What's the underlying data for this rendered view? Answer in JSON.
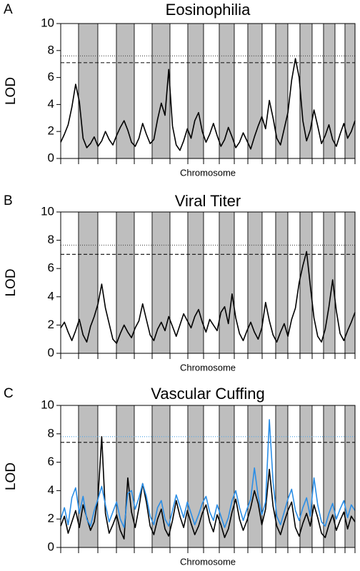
{
  "chart_data": [
    {
      "type": "line",
      "panel": "A",
      "title": "Eosinophilia",
      "ylabel": "LOD",
      "xlabel": "Chromosome",
      "ylim": [
        0,
        10
      ],
      "yticks": [
        0,
        2,
        4,
        6,
        8,
        10
      ],
      "thresholds": [
        {
          "value": 7.6,
          "style": "dotted",
          "color": "#555555"
        },
        {
          "value": 7.1,
          "style": "dashed",
          "color": "#222222"
        }
      ],
      "series": [
        {
          "color": "#000000",
          "values": [
            1.2,
            1.8,
            2.5,
            3.8,
            5.5,
            4.2,
            1.5,
            0.8,
            1.1,
            1.6,
            0.9,
            1.3,
            2.0,
            1.4,
            1.0,
            1.7,
            2.3,
            2.8,
            2.1,
            1.2,
            0.9,
            1.5,
            2.6,
            1.8,
            1.1,
            1.4,
            2.9,
            4.1,
            3.2,
            6.6,
            2.4,
            1.0,
            0.6,
            1.3,
            2.2,
            1.5,
            2.8,
            3.4,
            2.0,
            1.2,
            1.8,
            2.6,
            1.7,
            0.9,
            1.4,
            2.3,
            1.6,
            0.8,
            1.2,
            1.9,
            1.3,
            0.7,
            1.6,
            2.4,
            3.1,
            2.2,
            4.3,
            3.0,
            1.5,
            1.0,
            2.2,
            3.4,
            5.8,
            7.4,
            6.0,
            2.8,
            1.3,
            2.1,
            3.6,
            2.4,
            1.1,
            1.7,
            2.5,
            1.4,
            0.9,
            1.8,
            2.6,
            1.5,
            2.0,
            2.8
          ]
        }
      ]
    },
    {
      "type": "line",
      "panel": "B",
      "title": "Viral Titer",
      "ylabel": "LOD",
      "xlabel": "Chromosome",
      "ylim": [
        0,
        10
      ],
      "yticks": [
        0,
        2,
        4,
        6,
        8,
        10
      ],
      "thresholds": [
        {
          "value": 7.65,
          "style": "dotted",
          "color": "#555555"
        },
        {
          "value": 7.0,
          "style": "dashed",
          "color": "#222222"
        }
      ],
      "series": [
        {
          "color": "#000000",
          "values": [
            1.8,
            2.2,
            1.5,
            0.9,
            1.6,
            2.4,
            1.3,
            0.8,
            1.9,
            2.6,
            3.5,
            4.9,
            3.2,
            2.1,
            1.0,
            0.7,
            1.4,
            2.0,
            1.5,
            1.1,
            1.8,
            2.3,
            3.5,
            2.4,
            1.3,
            0.9,
            1.7,
            2.2,
            1.6,
            2.6,
            1.9,
            1.2,
            2.0,
            2.8,
            2.3,
            1.8,
            2.6,
            3.1,
            2.2,
            1.5,
            2.4,
            2.0,
            1.6,
            2.9,
            3.3,
            2.1,
            4.2,
            2.5,
            1.4,
            0.9,
            1.6,
            2.2,
            1.5,
            1.0,
            1.8,
            3.6,
            2.3,
            1.3,
            0.8,
            1.5,
            2.1,
            1.2,
            2.4,
            3.2,
            5.0,
            6.2,
            7.2,
            4.8,
            2.5,
            1.2,
            0.8,
            1.7,
            3.3,
            5.2,
            3.0,
            1.4,
            0.9,
            1.6,
            2.2,
            2.9
          ]
        }
      ]
    },
    {
      "type": "line",
      "panel": "C",
      "title": "Vascular Cuffing",
      "ylabel": "LOD",
      "xlabel": "Chromosome",
      "ylim": [
        0,
        10
      ],
      "yticks": [
        0,
        2,
        4,
        6,
        8,
        10
      ],
      "thresholds": [
        {
          "value": 7.8,
          "style": "dotted",
          "color": "#5aa9e6"
        },
        {
          "value": 7.4,
          "style": "dashed",
          "color": "#222222"
        }
      ],
      "series": [
        {
          "color": "#000000",
          "values": [
            1.5,
            2.2,
            1.0,
            1.8,
            2.6,
            1.4,
            3.0,
            2.1,
            1.2,
            1.8,
            3.5,
            7.8,
            2.4,
            1.0,
            1.6,
            2.3,
            1.2,
            0.6,
            4.9,
            2.5,
            1.4,
            2.8,
            4.5,
            3.2,
            1.5,
            0.9,
            2.0,
            2.7,
            1.3,
            0.8,
            1.9,
            3.3,
            2.2,
            1.4,
            2.6,
            1.7,
            0.9,
            1.5,
            2.4,
            3.0,
            1.8,
            1.1,
            2.3,
            1.6,
            0.7,
            1.3,
            2.5,
            3.4,
            2.0,
            1.2,
            1.9,
            2.8,
            4.0,
            3.1,
            1.6,
            2.7,
            5.5,
            2.9,
            1.5,
            0.9,
            1.8,
            2.6,
            3.2,
            1.4,
            0.8,
            1.7,
            2.4,
            1.5,
            3.0,
            2.1,
            1.0,
            0.7,
            1.6,
            2.3,
            1.2,
            1.9,
            2.5,
            1.3,
            2.2,
            1.8
          ]
        },
        {
          "color": "#2b8ee6",
          "values": [
            2.0,
            2.8,
            1.6,
            3.5,
            4.2,
            2.4,
            3.6,
            2.0,
            1.5,
            2.6,
            3.4,
            4.3,
            3.0,
            1.8,
            2.5,
            3.2,
            2.0,
            1.4,
            3.8,
            4.0,
            2.7,
            3.5,
            4.5,
            3.6,
            2.2,
            1.6,
            2.8,
            3.3,
            2.0,
            1.5,
            2.6,
            3.7,
            2.9,
            2.1,
            3.2,
            2.4,
            1.6,
            2.3,
            3.1,
            3.6,
            2.5,
            1.9,
            3.0,
            2.2,
            1.4,
            2.1,
            3.3,
            4.0,
            2.8,
            1.9,
            2.7,
            3.4,
            5.6,
            3.6,
            2.3,
            3.2,
            9.0,
            4.6,
            2.2,
            1.6,
            2.5,
            3.4,
            4.1,
            2.6,
            1.9,
            2.8,
            3.5,
            2.2,
            4.9,
            3.0,
            1.8,
            1.5,
            2.4,
            3.1,
            2.0,
            2.7,
            3.3,
            2.1,
            3.0,
            2.6
          ]
        }
      ]
    }
  ]
}
